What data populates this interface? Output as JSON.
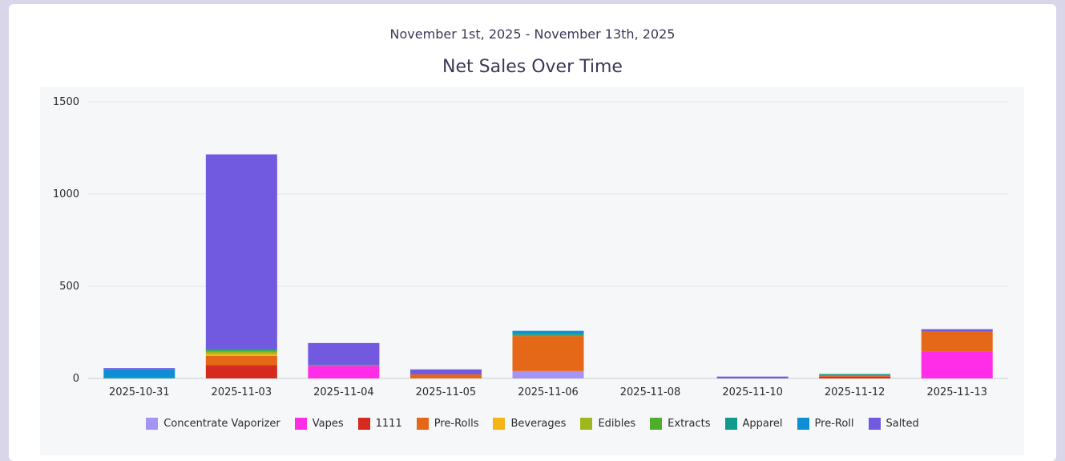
{
  "header": {
    "date_range": "November 1st, 2025 - November 13th, 2025"
  },
  "chart_data": {
    "type": "bar",
    "stacked": true,
    "title": "Net Sales Over Time",
    "xlabel": "",
    "ylabel": "",
    "ylim": [
      0,
      1500
    ],
    "yticks": [
      0,
      500,
      1000,
      1500
    ],
    "grid": true,
    "legend_position": "bottom",
    "categories": [
      "2025-10-31",
      "2025-11-03",
      "2025-11-04",
      "2025-11-05",
      "2025-11-06",
      "2025-11-08",
      "2025-11-10",
      "2025-11-12",
      "2025-11-13"
    ],
    "series": [
      {
        "name": "Concentrate Vaporizer",
        "color": "#a594f5",
        "values": [
          0,
          0,
          0,
          0,
          40,
          0,
          0,
          0,
          0
        ]
      },
      {
        "name": "Vapes",
        "color": "#ff2ce8",
        "values": [
          0,
          0,
          68,
          0,
          0,
          0,
          0,
          0,
          146
        ]
      },
      {
        "name": "1111",
        "color": "#d52a1e",
        "values": [
          0,
          72,
          0,
          0,
          0,
          0,
          0,
          10,
          0
        ]
      },
      {
        "name": "Pre-Rolls",
        "color": "#e46817",
        "values": [
          0,
          50,
          0,
          22,
          190,
          0,
          0,
          8,
          108
        ]
      },
      {
        "name": "Beverages",
        "color": "#f5b416",
        "values": [
          0,
          10,
          0,
          0,
          0,
          0,
          0,
          0,
          0
        ]
      },
      {
        "name": "Edibles",
        "color": "#9fb71c",
        "values": [
          0,
          12,
          0,
          0,
          0,
          0,
          0,
          0,
          0
        ]
      },
      {
        "name": "Extracts",
        "color": "#4daf2a",
        "values": [
          0,
          8,
          6,
          0,
          6,
          0,
          0,
          0,
          0
        ]
      },
      {
        "name": "Apparel",
        "color": "#0f9a8d",
        "values": [
          5,
          8,
          0,
          0,
          8,
          0,
          0,
          6,
          0
        ]
      },
      {
        "name": "Pre-Roll",
        "color": "#0f8ed6",
        "values": [
          46,
          0,
          0,
          0,
          14,
          0,
          0,
          0,
          0
        ]
      },
      {
        "name": "Salted",
        "color": "#7159e0",
        "values": [
          5,
          1055,
          118,
          27,
          0,
          0,
          10,
          0,
          13
        ]
      }
    ]
  }
}
